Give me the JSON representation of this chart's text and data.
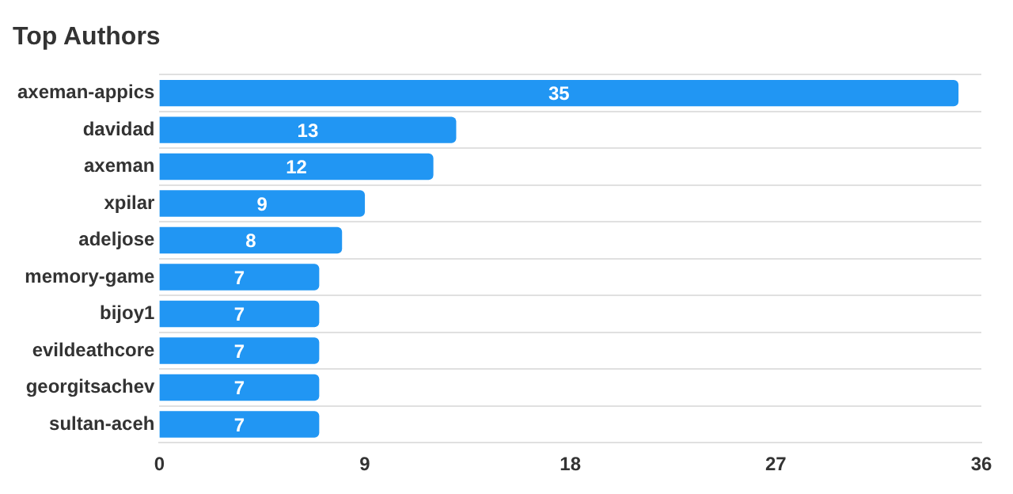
{
  "chart_data": {
    "type": "bar",
    "title": "Top Authors",
    "orientation": "horizontal",
    "categories": [
      "axeman-appics",
      "davidad",
      "axeman",
      "xpilar",
      "adeljose",
      "memory-game",
      "bijoy1",
      "evildeathcore",
      "georgitsachev",
      "sultan-aceh"
    ],
    "values": [
      35,
      13,
      12,
      9,
      8,
      7,
      7,
      7,
      7,
      7
    ],
    "color": "#2196f3",
    "xlim": [
      0,
      36
    ],
    "xticks": [
      0,
      9,
      18,
      27,
      36
    ],
    "grid": "y",
    "data_labels": true,
    "legend": false
  }
}
